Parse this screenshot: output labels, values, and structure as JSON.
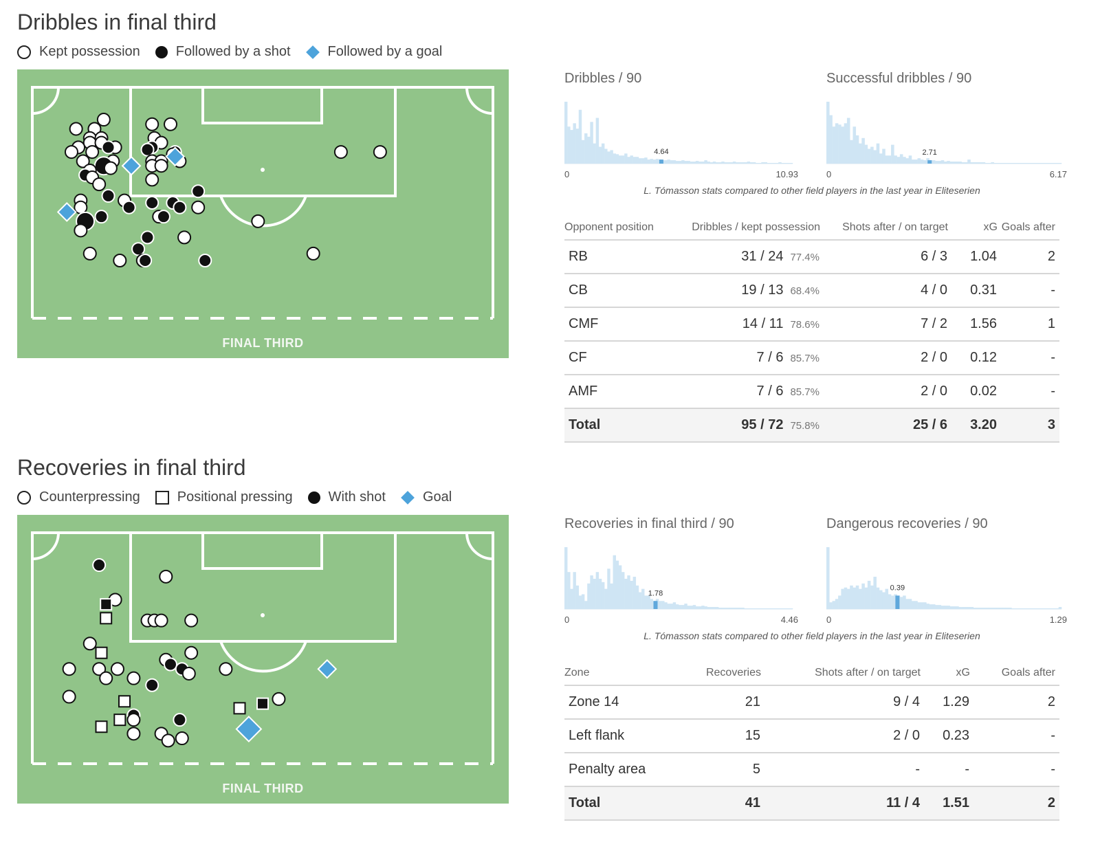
{
  "dribbles": {
    "title": "Dribbles in final third",
    "legend": [
      {
        "label": "Kept possession",
        "symbol": "circle-open"
      },
      {
        "label": "Followed by a shot",
        "symbol": "circle-filled"
      },
      {
        "label": "Followed by a goal",
        "symbol": "diamond-blue"
      }
    ],
    "pitch_label": "FINAL THIRD",
    "hist_caption": "L. Tómasson stats compared to other field players in the last year in Eliteserien",
    "table": {
      "headers": [
        "Opponent position",
        "Dribbles / kept possession",
        "Shots after / on target",
        "xG",
        "Goals after"
      ],
      "rows": [
        {
          "pos": "RB",
          "dribbles": "31 / 24",
          "pct": "77.4%",
          "shots": "6 / 3",
          "xg": "1.04",
          "goals": "2"
        },
        {
          "pos": "CB",
          "dribbles": "19 / 13",
          "pct": "68.4%",
          "shots": "4 / 0",
          "xg": "0.31",
          "goals": "-"
        },
        {
          "pos": "CMF",
          "dribbles": "14 / 11",
          "pct": "78.6%",
          "shots": "7 / 2",
          "xg": "1.56",
          "goals": "1"
        },
        {
          "pos": "CF",
          "dribbles": "7 / 6",
          "pct": "85.7%",
          "shots": "2 / 0",
          "xg": "0.12",
          "goals": "-"
        },
        {
          "pos": "AMF",
          "dribbles": "7 / 6",
          "pct": "85.7%",
          "shots": "2 / 0",
          "xg": "0.02",
          "goals": "-"
        }
      ],
      "total": {
        "pos": "Total",
        "dribbles": "95 / 72",
        "pct": "75.8%",
        "shots": "25 / 6",
        "xg": "3.20",
        "goals": "3"
      }
    }
  },
  "recoveries": {
    "title": "Recoveries in final third",
    "legend": [
      {
        "label": "Counterpressing",
        "symbol": "circle-open"
      },
      {
        "label": "Positional pressing",
        "symbol": "square-open"
      },
      {
        "label": "With shot",
        "symbol": "circle-filled"
      },
      {
        "label": "Goal",
        "symbol": "diamond-blue"
      }
    ],
    "pitch_label": "FINAL THIRD",
    "hist_caption": "L. Tómasson stats compared to other field players in the last year in Eliteserien",
    "table": {
      "headers": [
        "Zone",
        "Recoveries",
        "Shots after / on target",
        "xG",
        "Goals after"
      ],
      "rows": [
        {
          "zone": "Zone 14",
          "rec": "21",
          "shots": "9 / 4",
          "xg": "1.29",
          "goals": "2"
        },
        {
          "zone": "Left flank",
          "rec": "15",
          "shots": "2 / 0",
          "xg": "0.23",
          "goals": "-"
        },
        {
          "zone": "Penalty area",
          "rec": "5",
          "shots": "-",
          "xg": "-",
          "goals": "-"
        }
      ],
      "total": {
        "zone": "Total",
        "rec": "41",
        "shots": "11 / 4",
        "xg": "1.51",
        "goals": "2"
      }
    }
  },
  "colors": {
    "pitch": "#91c489",
    "line": "#ffffff",
    "hist_bar": "#cfe5f4",
    "hist_marker": "#5fa8dc",
    "goal": "#4da3db"
  },
  "chart_data": [
    {
      "type": "scatter",
      "name": "dribbles-pitch-map",
      "coord_units": "pitch final third (x 0-100 across, y 0-100 toward halfway line)",
      "points": [
        {
          "x": 15.5,
          "y": 14,
          "t": "open"
        },
        {
          "x": 9.5,
          "y": 18,
          "t": "open"
        },
        {
          "x": 13.5,
          "y": 18,
          "t": "open"
        },
        {
          "x": 26,
          "y": 16,
          "t": "open"
        },
        {
          "x": 30,
          "y": 16,
          "t": "open"
        },
        {
          "x": 12.5,
          "y": 22,
          "t": "open"
        },
        {
          "x": 15,
          "y": 22,
          "t": "open"
        },
        {
          "x": 26.5,
          "y": 22,
          "t": "open"
        },
        {
          "x": 12.5,
          "y": 24,
          "t": "open"
        },
        {
          "x": 15,
          "y": 24,
          "t": "open"
        },
        {
          "x": 28,
          "y": 24,
          "t": "open"
        },
        {
          "x": 10,
          "y": 26,
          "t": "open"
        },
        {
          "x": 18,
          "y": 26,
          "t": "open"
        },
        {
          "x": 26,
          "y": 26,
          "t": "shot"
        },
        {
          "x": 16.5,
          "y": 26,
          "t": "shot"
        },
        {
          "x": 25,
          "y": 27,
          "t": "shot"
        },
        {
          "x": 8.5,
          "y": 28,
          "t": "open"
        },
        {
          "x": 13,
          "y": 28,
          "t": "open"
        },
        {
          "x": 31,
          "y": 28,
          "t": "shot"
        },
        {
          "x": 30.5,
          "y": 29,
          "t": "open"
        },
        {
          "x": 67,
          "y": 28,
          "t": "open"
        },
        {
          "x": 75.5,
          "y": 28,
          "t": "open"
        },
        {
          "x": 11,
          "y": 32,
          "t": "open"
        },
        {
          "x": 17.5,
          "y": 32,
          "t": "open"
        },
        {
          "x": 26,
          "y": 32,
          "t": "open"
        },
        {
          "x": 28,
          "y": 32,
          "t": "open"
        },
        {
          "x": 32,
          "y": 32,
          "t": "open"
        },
        {
          "x": 15.5,
          "y": 34,
          "t": "shot_big"
        },
        {
          "x": 26,
          "y": 34,
          "t": "open"
        },
        {
          "x": 28,
          "y": 34,
          "t": "open"
        },
        {
          "x": 17,
          "y": 35,
          "t": "open"
        },
        {
          "x": 12.5,
          "y": 36,
          "t": "open"
        },
        {
          "x": 11.5,
          "y": 38,
          "t": "shot"
        },
        {
          "x": 13,
          "y": 39,
          "t": "open"
        },
        {
          "x": 26,
          "y": 40,
          "t": "open"
        },
        {
          "x": 14.5,
          "y": 42,
          "t": "open"
        },
        {
          "x": 36,
          "y": 45,
          "t": "shot"
        },
        {
          "x": 16.5,
          "y": 47,
          "t": "shot"
        },
        {
          "x": 10.5,
          "y": 49,
          "t": "open"
        },
        {
          "x": 20,
          "y": 49,
          "t": "open"
        },
        {
          "x": 26,
          "y": 50,
          "t": "shot"
        },
        {
          "x": 30.5,
          "y": 50,
          "t": "shot"
        },
        {
          "x": 10.5,
          "y": 52,
          "t": "open"
        },
        {
          "x": 21,
          "y": 52,
          "t": "shot"
        },
        {
          "x": 32,
          "y": 52,
          "t": "shot"
        },
        {
          "x": 36,
          "y": 52,
          "t": "open"
        },
        {
          "x": 15,
          "y": 56,
          "t": "shot"
        },
        {
          "x": 27.5,
          "y": 56,
          "t": "open"
        },
        {
          "x": 28.5,
          "y": 56,
          "t": "shot"
        },
        {
          "x": 11.5,
          "y": 58,
          "t": "shot_big"
        },
        {
          "x": 49,
          "y": 58,
          "t": "open"
        },
        {
          "x": 10.5,
          "y": 62,
          "t": "open"
        },
        {
          "x": 25,
          "y": 65,
          "t": "shot"
        },
        {
          "x": 33,
          "y": 65,
          "t": "open"
        },
        {
          "x": 23,
          "y": 70,
          "t": "shot"
        },
        {
          "x": 12.5,
          "y": 72,
          "t": "open"
        },
        {
          "x": 19,
          "y": 75,
          "t": "open"
        },
        {
          "x": 24,
          "y": 75,
          "t": "open"
        },
        {
          "x": 24.5,
          "y": 75,
          "t": "shot"
        },
        {
          "x": 37.5,
          "y": 75,
          "t": "shot"
        },
        {
          "x": 61,
          "y": 72,
          "t": "open"
        },
        {
          "x": 21.5,
          "y": 34,
          "t": "goal"
        },
        {
          "x": 31,
          "y": 30,
          "t": "goal"
        },
        {
          "x": 7.5,
          "y": 54,
          "t": "goal"
        }
      ]
    },
    {
      "type": "bar",
      "name": "Dribbles / 90",
      "xlim": [
        0,
        10.93
      ],
      "player_value": 4.64,
      "values": [
        0.92,
        0.55,
        0.5,
        0.6,
        0.52,
        0.8,
        0.35,
        0.45,
        0.4,
        0.62,
        0.3,
        0.68,
        0.25,
        0.3,
        0.22,
        0.18,
        0.2,
        0.15,
        0.14,
        0.12,
        0.12,
        0.15,
        0.1,
        0.12,
        0.1,
        0.1,
        0.08,
        0.08,
        0.09,
        0.06,
        0.07,
        0.06,
        0.07,
        0.06,
        0.05,
        0.05,
        0.06,
        0.05,
        0.05,
        0.04,
        0.04,
        0.05,
        0.04,
        0.04,
        0.03,
        0.03,
        0.04,
        0.03,
        0.03,
        0.05,
        0.03,
        0.02,
        0.03,
        0.02,
        0.02,
        0.03,
        0.02,
        0.02,
        0.02,
        0.03,
        0.02,
        0.02,
        0.02,
        0.02,
        0.03,
        0.02,
        0.02,
        0.01,
        0.01,
        0.02,
        0.02,
        0.01,
        0.01,
        0.01,
        0.01,
        0.02,
        0.01,
        0.01,
        0.01,
        0.01
      ]
    },
    {
      "type": "bar",
      "name": "Successful dribbles / 90",
      "xlim": [
        0,
        6.17
      ],
      "player_value": 2.71,
      "values": [
        0.92,
        0.72,
        0.55,
        0.6,
        0.58,
        0.55,
        0.6,
        0.68,
        0.35,
        0.55,
        0.42,
        0.3,
        0.38,
        0.28,
        0.22,
        0.25,
        0.2,
        0.3,
        0.15,
        0.22,
        0.12,
        0.12,
        0.28,
        0.12,
        0.1,
        0.14,
        0.1,
        0.08,
        0.12,
        0.06,
        0.06,
        0.08,
        0.06,
        0.05,
        0.08,
        0.05,
        0.05,
        0.04,
        0.04,
        0.05,
        0.03,
        0.04,
        0.03,
        0.03,
        0.03,
        0.03,
        0.02,
        0.02,
        0.06,
        0.02,
        0.02,
        0.02,
        0.02,
        0.02,
        0.01,
        0.01,
        0.02,
        0.01,
        0.01,
        0.01,
        0.01,
        0.01,
        0.01,
        0.01,
        0.01,
        0.01,
        0.01,
        0.01,
        0.01,
        0.01,
        0.01,
        0.01,
        0.01,
        0.01,
        0.01,
        0.01,
        0.01,
        0.01,
        0.01,
        0.01
      ]
    },
    {
      "type": "scatter",
      "name": "recoveries-pitch-map",
      "coord_units": "pitch final third (x 0-100 across, y 0-100 toward halfway line)",
      "points": [
        {
          "x": 14.5,
          "y": 14,
          "t": "shot"
        },
        {
          "x": 29,
          "y": 19,
          "t": "open"
        },
        {
          "x": 18,
          "y": 29,
          "t": "open"
        },
        {
          "x": 16,
          "y": 31,
          "t": "sq_shot"
        },
        {
          "x": 16,
          "y": 37,
          "t": "sq"
        },
        {
          "x": 25,
          "y": 38,
          "t": "open"
        },
        {
          "x": 26.5,
          "y": 38,
          "t": "open"
        },
        {
          "x": 28,
          "y": 38,
          "t": "open"
        },
        {
          "x": 34.5,
          "y": 38,
          "t": "open"
        },
        {
          "x": 12.5,
          "y": 48,
          "t": "open"
        },
        {
          "x": 15,
          "y": 52,
          "t": "sq"
        },
        {
          "x": 29,
          "y": 55,
          "t": "open"
        },
        {
          "x": 30,
          "y": 57,
          "t": "shot"
        },
        {
          "x": 34.5,
          "y": 52,
          "t": "open"
        },
        {
          "x": 32.5,
          "y": 59,
          "t": "shot"
        },
        {
          "x": 34,
          "y": 61,
          "t": "open"
        },
        {
          "x": 8,
          "y": 59,
          "t": "open"
        },
        {
          "x": 14.5,
          "y": 59,
          "t": "open"
        },
        {
          "x": 18.5,
          "y": 59,
          "t": "open"
        },
        {
          "x": 42,
          "y": 59,
          "t": "open"
        },
        {
          "x": 16,
          "y": 63,
          "t": "open"
        },
        {
          "x": 22,
          "y": 63,
          "t": "open"
        },
        {
          "x": 26,
          "y": 66,
          "t": "shot"
        },
        {
          "x": 8,
          "y": 71,
          "t": "open"
        },
        {
          "x": 20,
          "y": 73,
          "t": "sq"
        },
        {
          "x": 22,
          "y": 79,
          "t": "shot"
        },
        {
          "x": 22,
          "y": 81,
          "t": "open"
        },
        {
          "x": 19,
          "y": 81,
          "t": "sq"
        },
        {
          "x": 15,
          "y": 84,
          "t": "sq"
        },
        {
          "x": 32,
          "y": 81,
          "t": "shot"
        },
        {
          "x": 45,
          "y": 76,
          "t": "sq"
        },
        {
          "x": 50,
          "y": 74,
          "t": "sq_shot"
        },
        {
          "x": 53.5,
          "y": 72,
          "t": "open"
        },
        {
          "x": 22,
          "y": 87,
          "t": "open"
        },
        {
          "x": 28,
          "y": 87,
          "t": "open"
        },
        {
          "x": 32.5,
          "y": 89,
          "t": "open"
        },
        {
          "x": 29.5,
          "y": 90,
          "t": "open"
        },
        {
          "x": 64,
          "y": 59,
          "t": "goal"
        },
        {
          "x": 47,
          "y": 85,
          "t": "goal_big"
        }
      ]
    },
    {
      "type": "bar",
      "name": "Recoveries in final third / 90",
      "xlim": [
        0,
        4.46
      ],
      "player_value": 1.78,
      "values": [
        0.92,
        0.55,
        0.3,
        0.55,
        0.35,
        0.2,
        0.22,
        0.12,
        0.38,
        0.5,
        0.45,
        0.55,
        0.45,
        0.4,
        0.3,
        0.6,
        0.38,
        0.8,
        0.72,
        0.65,
        0.55,
        0.45,
        0.5,
        0.42,
        0.48,
        0.35,
        0.25,
        0.3,
        0.2,
        0.2,
        0.15,
        0.12,
        0.15,
        0.12,
        0.12,
        0.1,
        0.08,
        0.08,
        0.1,
        0.07,
        0.06,
        0.06,
        0.08,
        0.05,
        0.05,
        0.06,
        0.04,
        0.04,
        0.05,
        0.04,
        0.03,
        0.03,
        0.03,
        0.03,
        0.02,
        0.02,
        0.02,
        0.02,
        0.02,
        0.02,
        0.02,
        0.02,
        0.02,
        0.01,
        0.01,
        0.01,
        0.01,
        0.01,
        0.01,
        0.01,
        0.01,
        0.01,
        0.01,
        0.01,
        0.01,
        0.01,
        0.01,
        0.01,
        0.01,
        0.01
      ]
    },
    {
      "type": "bar",
      "name": "Dangerous recoveries / 90",
      "xlim": [
        0,
        1.29
      ],
      "player_value": 0.39,
      "values": [
        0.92,
        0.1,
        0.12,
        0.15,
        0.2,
        0.3,
        0.32,
        0.3,
        0.35,
        0.32,
        0.35,
        0.3,
        0.38,
        0.32,
        0.42,
        0.35,
        0.48,
        0.32,
        0.28,
        0.25,
        0.3,
        0.22,
        0.2,
        0.22,
        0.2,
        0.18,
        0.2,
        0.15,
        0.15,
        0.12,
        0.12,
        0.1,
        0.1,
        0.1,
        0.08,
        0.07,
        0.07,
        0.06,
        0.06,
        0.05,
        0.05,
        0.05,
        0.04,
        0.04,
        0.04,
        0.03,
        0.03,
        0.03,
        0.03,
        0.03,
        0.02,
        0.02,
        0.02,
        0.02,
        0.02,
        0.02,
        0.02,
        0.02,
        0.02,
        0.02,
        0.02,
        0.02,
        0.02,
        0.01,
        0.01,
        0.01,
        0.01,
        0.01,
        0.01,
        0.01,
        0.01,
        0.01,
        0.01,
        0.01,
        0.01,
        0.01,
        0.01,
        0.01,
        0.01,
        0.03
      ]
    }
  ]
}
